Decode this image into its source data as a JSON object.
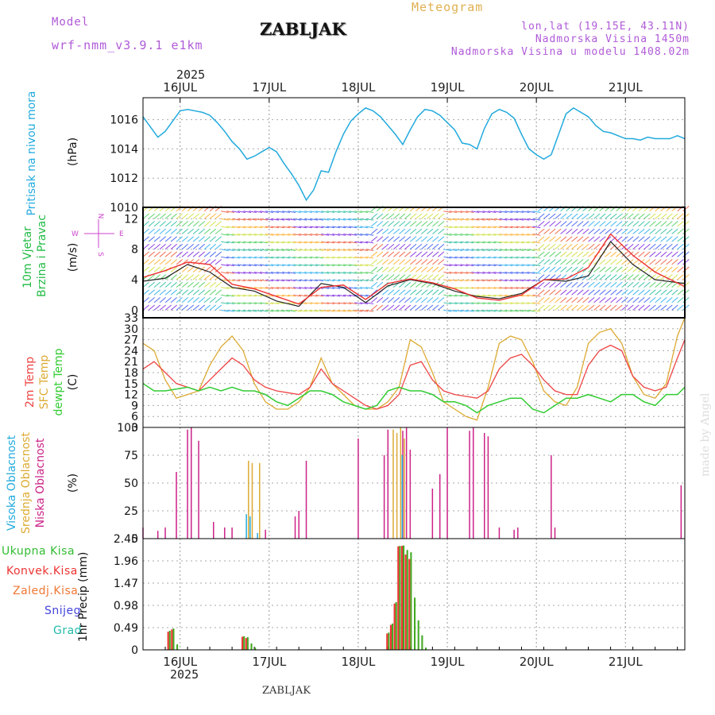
{
  "header": {
    "model_label": "Model",
    "model_name": "wrf-nmm_v3.9.1 e1km",
    "title": "ZABLJAK",
    "meteogram": "Meteogram",
    "lonlat": "lon,lat (19.15E, 43.11N)",
    "elev": "Nadmorska Visina 1450m",
    "elev_model": "Nadmorska Visina u modelu 1408.02m",
    "year_top": "2025",
    "year_bottom": "2025",
    "footer": "ZABLJAK",
    "watermark": "made by Angel"
  },
  "colors": {
    "pressure": "#22aadd",
    "t2m": "#ee4444",
    "sfc": "#ddaa33",
    "dewpt": "#33cc33",
    "high_cloud": "#22aadd",
    "mid_cloud": "#ddaa33",
    "low_cloud": "#cc2288",
    "precip_total": "#44aa22",
    "precip_conv": "#ee3333",
    "frozen": "#ee7733",
    "snow": "#4444dd",
    "graupel": "#22bbaa",
    "wind_dir": "#cc44cc"
  },
  "panels": {
    "pressure": {
      "label_main": "Pritisak na nivou mora",
      "unit": "(hPa)"
    },
    "wind": {
      "label1": "10m Vjetar",
      "label2": "Brzina i Pravac",
      "unit": "(m/s)",
      "dir_n": "N",
      "dir_s": "S",
      "dir_e": "E",
      "dir_w": "W"
    },
    "temp": {
      "label1": "2m Temp",
      "label2": "SFC Temp",
      "label3": "dewpt Temp",
      "unit": "(C)"
    },
    "cloud": {
      "label1": "Visoka Oblacnost",
      "label2": "Srednja Oblacnost",
      "label3": "Niska Oblacnost",
      "unit": "(%)"
    },
    "precip": {
      "legend": [
        "Ukupna Kisa",
        "Konvek.Kisa",
        "Zaledj.Kisa",
        "Snijeg",
        "Grad"
      ],
      "unit": "1hr Precip (mm)"
    }
  },
  "chart_data": [
    {
      "type": "line",
      "name": "pressure",
      "ylabel": "Pritisak na nivou mora (hPa)",
      "xlabel": "",
      "x_ticks": [
        "16JUL",
        "17JUL",
        "18JUL",
        "19JUL",
        "20JUL",
        "21JUL"
      ],
      "x_range_hours": [
        0,
        146
      ],
      "ylim": [
        1010,
        1017.5
      ],
      "yticks": [
        1010,
        1012,
        1014,
        1016
      ],
      "grid": true,
      "series": [
        {
          "name": "",
          "x": [
            0,
            2,
            4,
            6,
            8,
            10,
            12,
            14,
            16,
            18,
            20,
            22,
            24,
            26,
            28,
            30,
            32,
            34,
            36,
            38,
            40,
            42,
            44,
            46,
            48,
            50,
            52,
            54,
            56,
            58,
            60,
            62,
            64,
            66,
            68,
            70,
            72,
            74,
            76,
            78,
            80,
            82,
            84,
            86,
            88,
            90,
            92,
            94,
            96,
            98,
            100,
            102,
            104,
            106,
            108,
            110,
            112,
            114,
            116,
            118,
            120,
            122,
            124,
            126,
            128,
            130,
            132,
            134,
            136,
            138,
            140,
            142,
            144,
            146
          ],
          "values": [
            1016.2,
            1015.5,
            1014.8,
            1015.2,
            1015.9,
            1016.6,
            1016.7,
            1016.6,
            1016.5,
            1016.3,
            1015.8,
            1015.2,
            1014.5,
            1014.0,
            1013.3,
            1013.5,
            1013.8,
            1014.1,
            1013.8,
            1013.0,
            1012.3,
            1011.5,
            1010.5,
            1011.2,
            1012.5,
            1012.4,
            1013.8,
            1015.0,
            1015.9,
            1016.4,
            1016.8,
            1016.6,
            1016.2,
            1015.6,
            1015.0,
            1014.3,
            1015.3,
            1016.2,
            1016.7,
            1016.6,
            1016.3,
            1015.8,
            1015.3,
            1014.4,
            1014.3,
            1014.0,
            1015.4,
            1016.4,
            1016.7,
            1016.5,
            1016.1,
            1015.0,
            1014.0,
            1013.6,
            1013.3,
            1013.6,
            1015.0,
            1016.4,
            1016.8,
            1016.5,
            1016.2,
            1015.6,
            1015.2,
            1015.1,
            1014.9,
            1014.7,
            1014.7,
            1014.6,
            1014.8,
            1014.7,
            1014.7,
            1014.7,
            1014.9,
            1014.7
          ]
        }
      ]
    },
    {
      "type": "line",
      "name": "wind",
      "ylabel": "10m Vjetar Brzina i Pravac (m/s)",
      "ylim": [
        -1,
        13.5
      ],
      "yticks": [
        0,
        4,
        8,
        12
      ],
      "grid": true,
      "series": [
        {
          "name": "",
          "x": [
            0,
            6,
            12,
            18,
            24,
            30,
            36,
            42,
            48,
            54,
            60,
            66,
            72,
            78,
            84,
            90,
            96,
            102,
            108,
            114,
            120,
            126,
            132,
            138,
            146
          ],
          "values": [
            3.8,
            4.2,
            6.0,
            5.0,
            3.0,
            2.5,
            1.2,
            0.5,
            3.5,
            3.0,
            1.0,
            3.2,
            4.0,
            3.5,
            2.5,
            1.8,
            1.5,
            2.2,
            4.0,
            3.8,
            4.5,
            9.0,
            6.0,
            4.0,
            3.5
          ]
        },
        {
          "name": "",
          "x": [
            0,
            6,
            12,
            18,
            24,
            30,
            36,
            42,
            48,
            54,
            60,
            66,
            72,
            78,
            84,
            90,
            96,
            102,
            108,
            114,
            120,
            126,
            132,
            138,
            146
          ],
          "values": [
            4.3,
            5.2,
            6.3,
            6.0,
            3.4,
            2.8,
            1.8,
            0.8,
            3.0,
            3.3,
            1.4,
            3.5,
            4.1,
            3.6,
            2.8,
            1.6,
            1.3,
            2.0,
            4.0,
            4.1,
            5.6,
            10.0,
            7.2,
            5.0,
            3.1
          ]
        }
      ]
    },
    {
      "type": "line",
      "name": "temperature",
      "ylabel": "2m Temp / SFC Temp / dewpt Temp (C)",
      "ylim": [
        3,
        33
      ],
      "yticks": [
        3,
        6,
        9,
        12,
        15,
        18,
        21,
        24,
        27,
        30,
        33
      ],
      "grid": true,
      "series": [
        {
          "name": "2m Temp",
          "x": [
            0,
            3,
            6,
            9,
            12,
            15,
            18,
            21,
            24,
            27,
            30,
            33,
            36,
            39,
            42,
            45,
            48,
            51,
            54,
            57,
            60,
            63,
            66,
            69,
            72,
            75,
            78,
            81,
            84,
            87,
            90,
            93,
            96,
            99,
            102,
            105,
            108,
            111,
            114,
            117,
            120,
            123,
            126,
            129,
            132,
            135,
            138,
            141,
            144,
            146
          ],
          "values": [
            19,
            21,
            18,
            15,
            14,
            13,
            16,
            19,
            22,
            20,
            16,
            14,
            13,
            12.5,
            12,
            14,
            19,
            15,
            13,
            11,
            9,
            8,
            9,
            12,
            20,
            21,
            16,
            13,
            12,
            11.5,
            11,
            13,
            19,
            22,
            23,
            20,
            16,
            13,
            12,
            12,
            20,
            24,
            25.5,
            24,
            17,
            14,
            13,
            14,
            22,
            27
          ]
        },
        {
          "name": "SFC Temp",
          "x": [
            0,
            3,
            6,
            9,
            12,
            15,
            18,
            21,
            24,
            27,
            30,
            33,
            36,
            39,
            42,
            45,
            48,
            51,
            54,
            57,
            60,
            63,
            66,
            69,
            72,
            75,
            78,
            81,
            84,
            87,
            90,
            93,
            96,
            99,
            102,
            105,
            108,
            111,
            114,
            117,
            120,
            123,
            126,
            129,
            132,
            135,
            138,
            141,
            144,
            146
          ],
          "values": [
            26,
            24,
            16,
            11,
            12,
            13,
            20,
            25,
            28,
            24,
            15,
            10,
            8,
            8,
            10,
            14,
            22,
            15,
            12,
            9,
            8,
            8,
            10,
            14,
            27,
            25,
            18,
            10,
            8,
            6,
            5,
            14,
            26,
            28,
            27,
            21,
            13,
            10,
            9,
            14,
            26,
            29,
            30,
            26,
            17,
            12,
            11,
            15,
            28,
            33
          ]
        },
        {
          "name": "dewpt Temp",
          "x": [
            0,
            3,
            6,
            9,
            12,
            15,
            18,
            21,
            24,
            27,
            30,
            33,
            36,
            39,
            42,
            45,
            48,
            51,
            54,
            57,
            60,
            63,
            66,
            69,
            72,
            75,
            78,
            81,
            84,
            87,
            90,
            93,
            96,
            99,
            102,
            105,
            108,
            111,
            114,
            117,
            120,
            123,
            126,
            129,
            132,
            135,
            138,
            141,
            144,
            146
          ],
          "values": [
            15,
            13,
            13,
            13.5,
            14,
            13,
            14,
            13,
            14,
            13,
            13,
            12,
            10,
            9,
            11,
            13,
            13,
            12,
            10,
            9,
            8,
            9,
            13,
            14,
            13,
            13,
            12,
            10,
            10,
            9,
            7,
            9,
            10,
            11,
            11,
            8,
            7,
            9,
            11,
            11,
            12,
            11,
            10,
            12,
            12,
            10,
            9,
            12,
            12,
            14
          ]
        }
      ]
    },
    {
      "type": "bar",
      "name": "cloud",
      "ylabel": "Oblacnost (%)",
      "ylim": [
        0,
        100
      ],
      "yticks": [
        0,
        25,
        50,
        75,
        100
      ],
      "grid": true,
      "series": [
        {
          "name": "Niska Oblacnost",
          "x": [
            0,
            4,
            6,
            9,
            12,
            13,
            15,
            19,
            22,
            24,
            33,
            41,
            42,
            44,
            58,
            65,
            66,
            70,
            71,
            72,
            78,
            80,
            82,
            88,
            89,
            92,
            93,
            96,
            100,
            101,
            110,
            111,
            145
          ],
          "values": [
            10,
            7,
            10,
            60,
            98,
            100,
            88,
            15,
            10,
            10,
            8,
            20,
            25,
            70,
            90,
            75,
            98,
            97,
            100,
            80,
            45,
            58,
            100,
            97,
            100,
            95,
            92,
            10,
            8,
            10,
            75,
            10,
            48
          ]
        },
        {
          "name": "Srednja Oblacnost",
          "x": [
            28,
            29,
            31,
            67,
            68,
            69,
            70
          ],
          "values": [
            70,
            68,
            68,
            98,
            95,
            100,
            90
          ]
        },
        {
          "name": "Visoka Oblacnost",
          "x": [
            27,
            28,
            30,
            69
          ],
          "values": [
            22,
            20,
            5,
            75
          ]
        }
      ]
    },
    {
      "type": "bar",
      "name": "precip",
      "ylabel": "1hr Precip (mm)",
      "ylim": [
        0,
        2.45
      ],
      "yticks": [
        0,
        0.49,
        0.98,
        1.47,
        1.96,
        2.45
      ],
      "grid": true,
      "series": [
        {
          "name": "Ukupna Kisa",
          "x": [
            7,
            8,
            9,
            27,
            28,
            29,
            30,
            66,
            67,
            68,
            69,
            70,
            71,
            72,
            73,
            74,
            75,
            76
          ],
          "values": [
            0.42,
            0.47,
            0.12,
            0.3,
            0.28,
            0.14,
            0.05,
            0.38,
            0.58,
            1.05,
            2.29,
            2.3,
            2.2,
            2.15,
            1.15,
            0.65,
            0.32,
            0.05
          ]
        },
        {
          "name": "Konvek.Kisa",
          "x": [
            7,
            8,
            27,
            28,
            66,
            67,
            68,
            69,
            70,
            71,
            72
          ],
          "values": [
            0.4,
            0.45,
            0.29,
            0.26,
            0.36,
            0.55,
            1.02,
            2.28,
            2.29,
            2.1,
            2.0
          ]
        }
      ]
    }
  ]
}
